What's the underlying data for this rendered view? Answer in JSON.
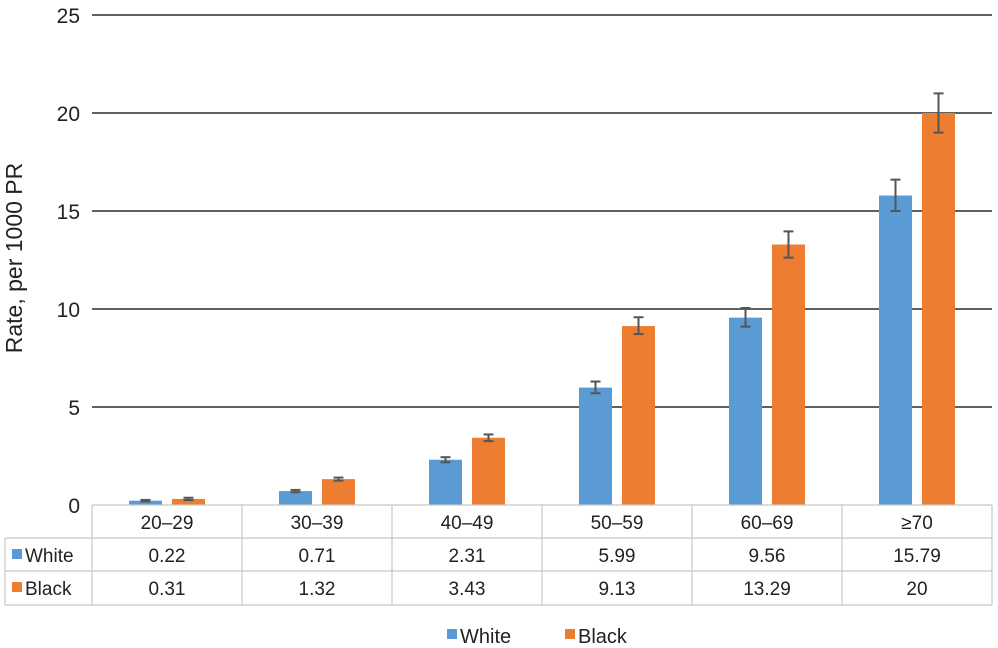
{
  "chart_data": {
    "type": "bar",
    "ylabel": "Rate, per 1000 PR",
    "ylim": [
      0,
      25
    ],
    "yticks": [
      0,
      5,
      10,
      15,
      20,
      25
    ],
    "grid": true,
    "legend_position": "bottom",
    "categories": [
      "20–29",
      "30–39",
      "40–49",
      "50–59",
      "60–69",
      "≥70"
    ],
    "series": [
      {
        "name": "White",
        "color": "#5B9BD5",
        "values": [
          0.22,
          0.71,
          2.31,
          5.99,
          9.56,
          15.79
        ],
        "error_low": [
          0.18,
          0.65,
          2.18,
          5.7,
          9.1,
          15.0
        ],
        "error_high": [
          0.26,
          0.77,
          2.44,
          6.3,
          10.05,
          16.6
        ]
      },
      {
        "name": "Black",
        "color": "#ED7D31",
        "values": [
          0.31,
          1.32,
          3.43,
          9.13,
          13.29,
          20
        ],
        "error_low": [
          0.25,
          1.24,
          3.26,
          8.72,
          12.62,
          19.0
        ],
        "error_high": [
          0.37,
          1.4,
          3.6,
          9.58,
          13.96,
          21.0
        ]
      }
    ],
    "table": {
      "rows": [
        {
          "label": "White",
          "cells": [
            "0.22",
            "0.71",
            "2.31",
            "5.99",
            "9.56",
            "15.79"
          ]
        },
        {
          "label": "Black",
          "cells": [
            "0.31",
            "1.32",
            "3.43",
            "9.13",
            "13.29",
            "20"
          ]
        }
      ]
    },
    "legend": [
      "White",
      "Black"
    ]
  }
}
